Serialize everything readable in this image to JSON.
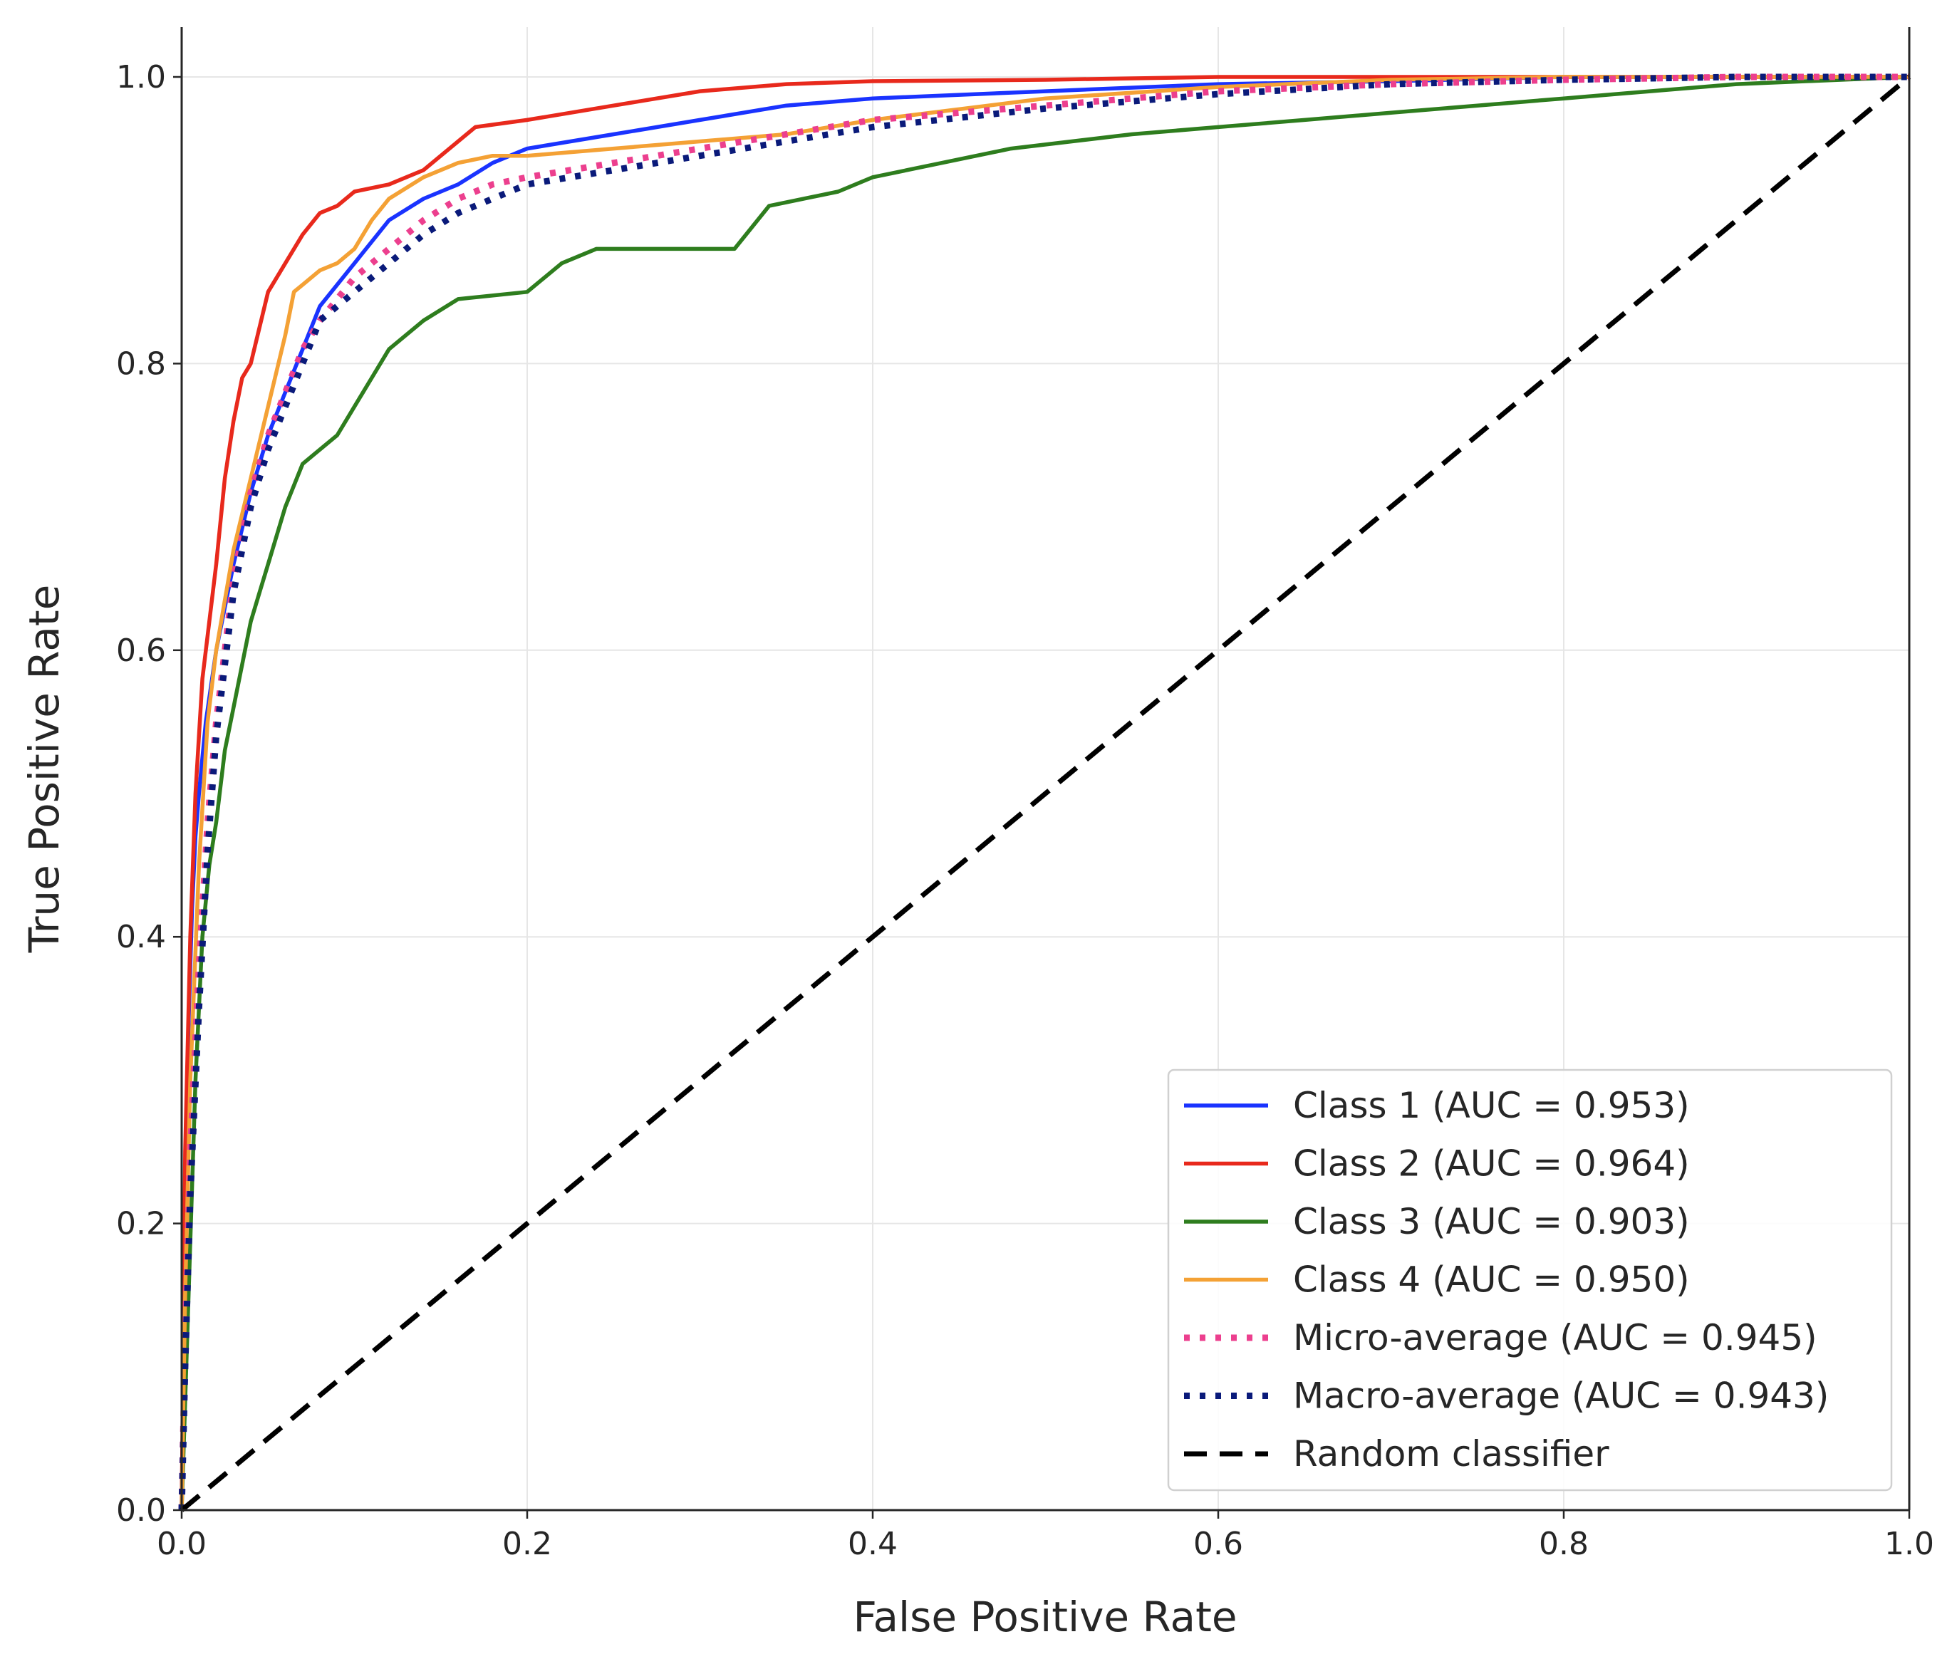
{
  "chart_data": {
    "type": "line",
    "title": "",
    "xlabel": "False Positive Rate",
    "ylabel": "True Positive Rate",
    "xlim": [
      0.0,
      1.0
    ],
    "ylim": [
      0.0,
      1.0
    ],
    "xticks": [
      "0.0",
      "0.2",
      "0.4",
      "0.6",
      "0.8",
      "1.0"
    ],
    "yticks": [
      "0.0",
      "0.2",
      "0.4",
      "0.6",
      "0.8",
      "1.0"
    ],
    "grid": true,
    "legend_position": "lower-right",
    "series": [
      {
        "name": "Class 1 (AUC = 0.953)",
        "color": "#1a33ff",
        "style": "solid",
        "x": [
          0,
          0.002,
          0.004,
          0.006,
          0.008,
          0.01,
          0.014,
          0.02,
          0.03,
          0.04,
          0.05,
          0.06,
          0.07,
          0.08,
          0.1,
          0.12,
          0.14,
          0.16,
          0.18,
          0.2,
          0.25,
          0.3,
          0.35,
          0.4,
          0.5,
          0.6,
          0.7,
          0.8,
          1.0
        ],
        "y": [
          0,
          0.2,
          0.34,
          0.42,
          0.47,
          0.5,
          0.55,
          0.6,
          0.66,
          0.71,
          0.75,
          0.78,
          0.81,
          0.84,
          0.87,
          0.9,
          0.915,
          0.925,
          0.94,
          0.95,
          0.96,
          0.97,
          0.98,
          0.985,
          0.99,
          0.995,
          0.997,
          1.0,
          1.0
        ]
      },
      {
        "name": "Class 2 (AUC = 0.964)",
        "color": "#e8291c",
        "style": "solid",
        "x": [
          0,
          0.002,
          0.005,
          0.008,
          0.012,
          0.016,
          0.02,
          0.025,
          0.03,
          0.035,
          0.04,
          0.05,
          0.06,
          0.07,
          0.08,
          0.09,
          0.1,
          0.12,
          0.14,
          0.16,
          0.17,
          0.2,
          0.25,
          0.3,
          0.35,
          0.4,
          0.5,
          0.6,
          0.8,
          1.0
        ],
        "y": [
          0,
          0.25,
          0.4,
          0.5,
          0.58,
          0.62,
          0.66,
          0.72,
          0.76,
          0.79,
          0.8,
          0.85,
          0.87,
          0.89,
          0.905,
          0.91,
          0.92,
          0.925,
          0.935,
          0.955,
          0.965,
          0.97,
          0.98,
          0.99,
          0.995,
          0.997,
          0.998,
          1.0,
          1.0,
          1.0
        ]
      },
      {
        "name": "Class 3 (AUC = 0.903)",
        "color": "#2e7d1e",
        "style": "solid",
        "x": [
          0,
          0.004,
          0.008,
          0.012,
          0.016,
          0.02,
          0.025,
          0.03,
          0.035,
          0.04,
          0.045,
          0.05,
          0.06,
          0.07,
          0.08,
          0.09,
          0.1,
          0.11,
          0.12,
          0.14,
          0.16,
          0.2,
          0.22,
          0.24,
          0.32,
          0.34,
          0.38,
          0.4,
          0.44,
          0.48,
          0.55,
          0.6,
          0.65,
          0.7,
          0.75,
          0.8,
          0.85,
          0.9,
          1.0
        ],
        "y": [
          0,
          0.15,
          0.3,
          0.4,
          0.45,
          0.48,
          0.53,
          0.56,
          0.59,
          0.62,
          0.64,
          0.66,
          0.7,
          0.73,
          0.74,
          0.75,
          0.77,
          0.79,
          0.81,
          0.83,
          0.845,
          0.85,
          0.87,
          0.88,
          0.88,
          0.91,
          0.92,
          0.93,
          0.94,
          0.95,
          0.96,
          0.965,
          0.97,
          0.975,
          0.98,
          0.985,
          0.99,
          0.995,
          1.0
        ]
      },
      {
        "name": "Class 4 (AUC = 0.950)",
        "color": "#f4a135",
        "style": "solid",
        "x": [
          0,
          0.002,
          0.005,
          0.01,
          0.015,
          0.02,
          0.03,
          0.04,
          0.05,
          0.06,
          0.065,
          0.07,
          0.08,
          0.09,
          0.1,
          0.11,
          0.12,
          0.14,
          0.16,
          0.18,
          0.2,
          0.25,
          0.3,
          0.35,
          0.4,
          0.5,
          0.6,
          0.7,
          0.8,
          1.0
        ],
        "y": [
          0,
          0.15,
          0.3,
          0.45,
          0.55,
          0.6,
          0.67,
          0.72,
          0.77,
          0.82,
          0.85,
          0.855,
          0.865,
          0.87,
          0.88,
          0.9,
          0.915,
          0.93,
          0.94,
          0.945,
          0.945,
          0.95,
          0.955,
          0.96,
          0.97,
          0.985,
          0.993,
          0.998,
          1.0,
          1.0
        ]
      },
      {
        "name": "Micro-average (AUC = 0.945)",
        "color": "#ec3f8e",
        "style": "dotted",
        "x": [
          0,
          0.002,
          0.005,
          0.01,
          0.015,
          0.02,
          0.03,
          0.04,
          0.05,
          0.06,
          0.07,
          0.08,
          0.1,
          0.12,
          0.14,
          0.16,
          0.18,
          0.2,
          0.25,
          0.3,
          0.35,
          0.4,
          0.5,
          0.6,
          0.7,
          0.8,
          0.9,
          1.0
        ],
        "y": [
          0,
          0.12,
          0.25,
          0.38,
          0.48,
          0.55,
          0.65,
          0.71,
          0.75,
          0.78,
          0.81,
          0.83,
          0.86,
          0.88,
          0.9,
          0.915,
          0.925,
          0.93,
          0.94,
          0.95,
          0.96,
          0.97,
          0.98,
          0.99,
          0.995,
          0.998,
          1.0,
          1.0
        ]
      },
      {
        "name": "Macro-average (AUC = 0.943)",
        "color": "#0a1a7a",
        "style": "dotted",
        "x": [
          0,
          0.002,
          0.005,
          0.01,
          0.015,
          0.02,
          0.03,
          0.04,
          0.05,
          0.06,
          0.07,
          0.08,
          0.1,
          0.12,
          0.14,
          0.16,
          0.18,
          0.2,
          0.25,
          0.3,
          0.35,
          0.4,
          0.5,
          0.6,
          0.7,
          0.8,
          0.9,
          1.0
        ],
        "y": [
          0,
          0.1,
          0.22,
          0.35,
          0.46,
          0.54,
          0.64,
          0.7,
          0.74,
          0.77,
          0.8,
          0.83,
          0.85,
          0.87,
          0.89,
          0.905,
          0.915,
          0.925,
          0.935,
          0.945,
          0.955,
          0.965,
          0.978,
          0.988,
          0.995,
          0.998,
          1.0,
          1.0
        ]
      },
      {
        "name": "Random classifier",
        "color": "#000000",
        "style": "dashed",
        "x": [
          0,
          1
        ],
        "y": [
          0,
          1
        ]
      }
    ]
  }
}
